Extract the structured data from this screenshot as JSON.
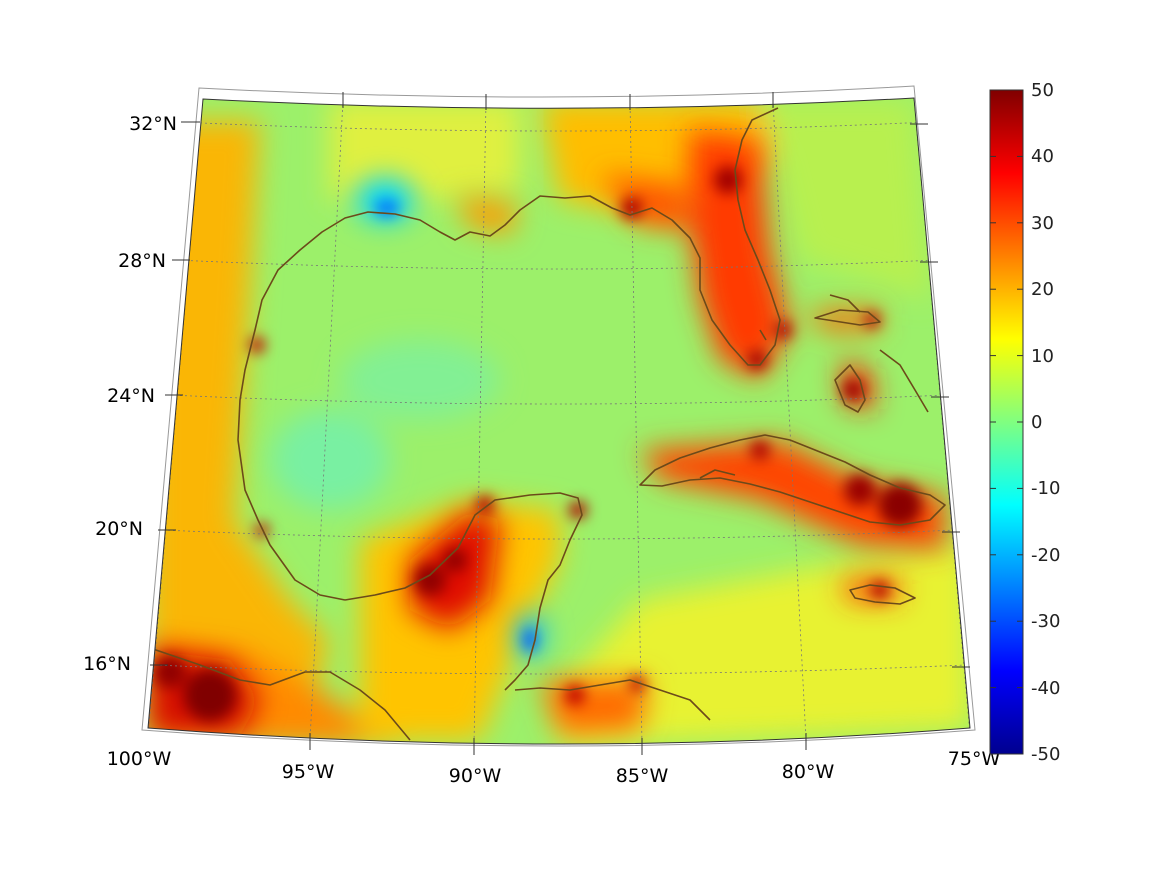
{
  "map": {
    "projection": "conic",
    "region": "Gulf of Mexico and Caribbean",
    "lon_labels": [
      "100°W",
      "95°W",
      "90°W",
      "85°W",
      "80°W",
      "75°W"
    ],
    "lat_labels": [
      "32°N",
      "28°N",
      "24°N",
      "20°N",
      "16°N"
    ],
    "grid": "dotted",
    "coastline_color": "#6b4a1a"
  },
  "colorbar": {
    "colormap": "jet",
    "range": [
      -50,
      50
    ],
    "tick_labels": [
      "50",
      "40",
      "30",
      "20",
      "10",
      "0",
      "-10",
      "-20",
      "-30",
      "-40",
      "-50"
    ]
  },
  "colors": {
    "background_field": "#9cf06a",
    "max_color": "#800000",
    "min_color": "#00008f"
  }
}
